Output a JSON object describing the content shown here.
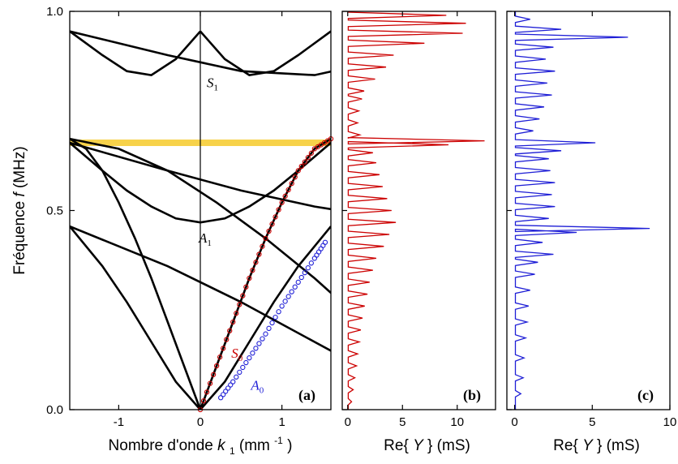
{
  "chart_data": [
    {
      "panel": "(a)",
      "type": "line",
      "title": "",
      "xlabel": "Nombre d'onde",
      "xlabel_k": "k",
      "xlabel_sub": "1",
      "xlabel_unit": " (mm",
      "xlabel_exp": "-1",
      "xlabel_close": ")",
      "ylabel": "Fréquence",
      "ylabel_f": "f",
      "ylabel_unit": " (MHz)",
      "xlim": [
        -1.6,
        1.6
      ],
      "ylim": [
        0.0,
        1.0
      ],
      "xticks": [
        -1,
        0,
        1
      ],
      "xtick_labels": [
        "-1",
        "0",
        "1"
      ],
      "yticks": [
        0.0,
        0.5,
        1.0
      ],
      "ytick_labels": [
        "0.0",
        "0.5",
        "1.0"
      ],
      "highlight_band": {
        "y": 0.67,
        "color": "#F7D24A"
      },
      "brillouin_zone_edges": [
        -1.6,
        1.6
      ],
      "bands": [
        {
          "name": "A_0 branch (folded)",
          "color": "#000000",
          "x": [
            0.0,
            0.3,
            0.6,
            0.9,
            1.2,
            1.6
          ],
          "y": [
            0.0,
            0.07,
            0.17,
            0.27,
            0.36,
            0.46
          ]
        },
        {
          "name": "S_0 branch (folded)",
          "color": "#000000",
          "x": [
            0.0,
            0.2,
            0.4,
            0.6,
            0.8,
            1.0,
            1.2,
            1.4,
            1.6
          ],
          "y": [
            0.0,
            0.11,
            0.22,
            0.33,
            0.43,
            0.52,
            0.6,
            0.655,
            0.68
          ]
        },
        {
          "name": "A_1 branch",
          "color": "#000000",
          "x": [
            0.0,
            0.3,
            0.6,
            0.9,
            1.2,
            1.6
          ],
          "y": [
            0.47,
            0.48,
            0.51,
            0.55,
            0.6,
            0.67
          ]
        },
        {
          "name": "S_1 branch",
          "color": "#000000",
          "x": [
            0.0,
            0.3,
            0.6,
            0.9,
            1.2,
            1.6
          ],
          "y": [
            0.95,
            0.88,
            0.84,
            0.85,
            0.89,
            0.95
          ]
        }
      ],
      "annotations": [
        {
          "text": "S",
          "sub": "1",
          "x": 0.08,
          "y": 0.81,
          "color": "#000000"
        },
        {
          "text": "A",
          "sub": "1",
          "x": -0.02,
          "y": 0.42,
          "color": "#000000"
        },
        {
          "text": "S",
          "sub": "0",
          "x": 0.38,
          "y": 0.13,
          "color": "#CC0000"
        },
        {
          "text": "A",
          "sub": "0",
          "x": 0.62,
          "y": 0.05,
          "color": "#1F1FD6"
        }
      ],
      "series": [
        {
          "marker": "circle",
          "color": "#CC0000",
          "x": [
            0.0,
            0.2,
            0.4,
            0.6,
            0.8,
            1.0,
            1.2,
            1.4,
            1.6
          ],
          "y": [
            0.0,
            0.11,
            0.22,
            0.33,
            0.43,
            0.52,
            0.6,
            0.655,
            0.68
          ]
        },
        {
          "marker": "circle",
          "color": "#1F1FD6",
          "x": [
            0.25,
            0.4,
            0.6,
            0.8,
            1.0,
            1.2,
            1.4,
            1.53
          ],
          "y": [
            0.03,
            0.07,
            0.13,
            0.19,
            0.26,
            0.32,
            0.38,
            0.42
          ]
        }
      ]
    },
    {
      "panel": "(b)",
      "type": "line",
      "title": "",
      "xlabel": "Re{",
      "xlabel_Y": "Y",
      "xlabel_unit": "} (mS)",
      "xlim": [
        -0.5,
        13.5
      ],
      "ylim": [
        0.0,
        1.0
      ],
      "xticks": [
        0,
        5,
        10
      ],
      "xtick_labels": [
        "0",
        "5",
        "10"
      ],
      "color": "#CC0000",
      "peaks": [
        {
          "y": 0.02,
          "x": 0.35
        },
        {
          "y": 0.05,
          "x": 0.5
        },
        {
          "y": 0.08,
          "x": 0.65
        },
        {
          "y": 0.11,
          "x": 0.8
        },
        {
          "y": 0.14,
          "x": 0.9
        },
        {
          "y": 0.17,
          "x": 1.05
        },
        {
          "y": 0.2,
          "x": 1.2
        },
        {
          "y": 0.23,
          "x": 1.35
        },
        {
          "y": 0.26,
          "x": 1.55
        },
        {
          "y": 0.29,
          "x": 1.8
        },
        {
          "y": 0.32,
          "x": 2.0
        },
        {
          "y": 0.35,
          "x": 2.3
        },
        {
          "y": 0.38,
          "x": 2.6
        },
        {
          "y": 0.41,
          "x": 3.3
        },
        {
          "y": 0.44,
          "x": 3.8
        },
        {
          "y": 0.47,
          "x": 4.4
        },
        {
          "y": 0.5,
          "x": 4.0
        },
        {
          "y": 0.53,
          "x": 3.6
        },
        {
          "y": 0.56,
          "x": 3.2
        },
        {
          "y": 0.59,
          "x": 2.9
        },
        {
          "y": 0.62,
          "x": 2.6
        },
        {
          "y": 0.645,
          "x": 2.3
        },
        {
          "y": 0.665,
          "x": 9.2
        },
        {
          "y": 0.675,
          "x": 12.5
        },
        {
          "y": 0.69,
          "x": 1.1
        },
        {
          "y": 0.72,
          "x": 0.9
        },
        {
          "y": 0.75,
          "x": 1.0
        },
        {
          "y": 0.78,
          "x": 1.3
        },
        {
          "y": 0.8,
          "x": 1.5
        },
        {
          "y": 0.83,
          "x": 2.5
        },
        {
          "y": 0.86,
          "x": 3.5
        },
        {
          "y": 0.89,
          "x": 4.2
        },
        {
          "y": 0.92,
          "x": 7.0
        },
        {
          "y": 0.945,
          "x": 10.5
        },
        {
          "y": 0.97,
          "x": 10.8
        },
        {
          "y": 0.99,
          "x": 9.0
        }
      ]
    },
    {
      "panel": "(c)",
      "type": "line",
      "title": "",
      "xlabel": "Re{",
      "xlabel_Y": "Y",
      "xlabel_unit": "} (mS)",
      "xlim": [
        -0.5,
        10.0
      ],
      "ylim": [
        0.0,
        1.0
      ],
      "xticks": [
        0,
        5,
        10
      ],
      "xtick_labels": [
        "0",
        "5",
        "10"
      ],
      "color": "#1F1FD6",
      "peaks": [
        {
          "y": 0.04,
          "x": 0.4
        },
        {
          "y": 0.08,
          "x": 0.55
        },
        {
          "y": 0.13,
          "x": 0.6
        },
        {
          "y": 0.18,
          "x": 0.7
        },
        {
          "y": 0.22,
          "x": 0.8
        },
        {
          "y": 0.26,
          "x": 0.9
        },
        {
          "y": 0.3,
          "x": 1.0
        },
        {
          "y": 0.34,
          "x": 1.3
        },
        {
          "y": 0.37,
          "x": 1.5
        },
        {
          "y": 0.39,
          "x": 2.5
        },
        {
          "y": 0.42,
          "x": 1.8
        },
        {
          "y": 0.445,
          "x": 4.0
        },
        {
          "y": 0.455,
          "x": 8.7
        },
        {
          "y": 0.48,
          "x": 2.2
        },
        {
          "y": 0.51,
          "x": 2.6
        },
        {
          "y": 0.54,
          "x": 2.4
        },
        {
          "y": 0.57,
          "x": 2.6
        },
        {
          "y": 0.6,
          "x": 2.3
        },
        {
          "y": 0.63,
          "x": 2.2
        },
        {
          "y": 0.65,
          "x": 3.0
        },
        {
          "y": 0.67,
          "x": 5.2
        },
        {
          "y": 0.7,
          "x": 1.2
        },
        {
          "y": 0.73,
          "x": 1.6
        },
        {
          "y": 0.76,
          "x": 1.9
        },
        {
          "y": 0.79,
          "x": 2.4
        },
        {
          "y": 0.82,
          "x": 2.1
        },
        {
          "y": 0.85,
          "x": 2.6
        },
        {
          "y": 0.88,
          "x": 2.0
        },
        {
          "y": 0.91,
          "x": 2.5
        },
        {
          "y": 0.935,
          "x": 7.3
        },
        {
          "y": 0.955,
          "x": 3.0
        },
        {
          "y": 0.98,
          "x": 1.0
        }
      ]
    }
  ]
}
